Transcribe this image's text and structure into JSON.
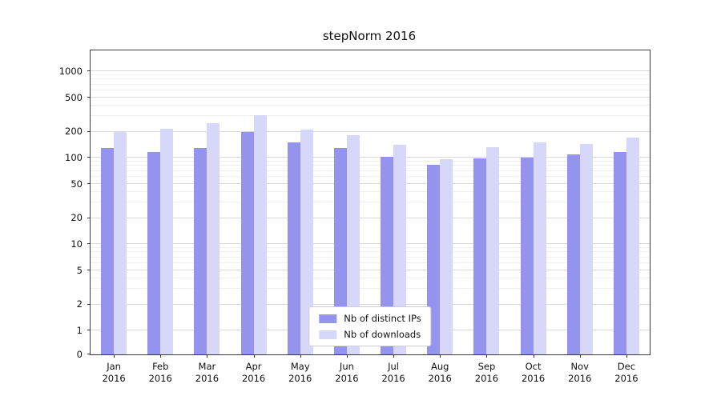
{
  "chart_data": {
    "type": "bar",
    "title": "stepNorm 2016",
    "year": "2016",
    "categories": [
      "Jan",
      "Feb",
      "Mar",
      "Apr",
      "May",
      "Jun",
      "Jul",
      "Aug",
      "Sep",
      "Oct",
      "Nov",
      "Dec"
    ],
    "series": [
      {
        "name": "Nb of distinct IPs",
        "color": "#9494ee",
        "values": [
          130,
          115,
          128,
          200,
          150,
          128,
          102,
          82,
          97,
          100,
          110,
          117
        ]
      },
      {
        "name": "Nb of downloads",
        "color": "#d7d7f9",
        "values": [
          200,
          215,
          250,
          310,
          210,
          182,
          140,
          95,
          133,
          150,
          143,
          172
        ]
      }
    ],
    "y_ticks": [
      0,
      1,
      2,
      5,
      10,
      20,
      50,
      100,
      200,
      500,
      1000
    ],
    "y_minor_ticks": [
      3,
      4,
      6,
      7,
      8,
      9,
      30,
      40,
      60,
      70,
      80,
      90,
      300,
      400,
      600,
      700,
      800,
      900
    ],
    "y_scale": "symlog",
    "ylim": [
      0,
      1700
    ],
    "grid": true,
    "legend_position": "lower center",
    "xlabel": "",
    "ylabel": ""
  }
}
